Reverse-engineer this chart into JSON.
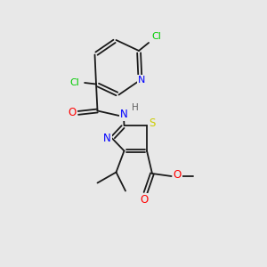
{
  "bg_color": "#e8e8e8",
  "atom_colors": {
    "C": "#1a1a1a",
    "N": "#0000ff",
    "O": "#ff0000",
    "S": "#cccc00",
    "Cl": "#00cc00",
    "H": "#606060"
  },
  "figsize": [
    3.0,
    3.0
  ],
  "dpi": 100,
  "lw": 1.3,
  "fs": 7.5
}
